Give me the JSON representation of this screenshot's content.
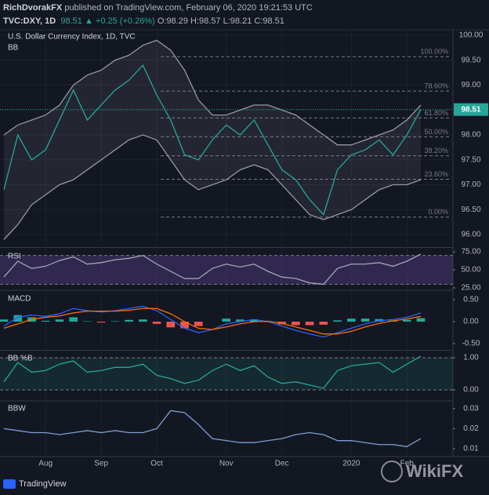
{
  "header": {
    "author": "RichDvorakFX",
    "published": "published on TradingView.com, February 06, 2020 19:21:53 UTC",
    "symbol": "TVC:DXY, 1D",
    "price": "98.51",
    "arrow": "▲",
    "change": "+0.25 (+0.26%)",
    "ohlc": "O:98.29 H:98.57 L:98.21 C:98.51"
  },
  "footer": {
    "brand": "TradingView",
    "watermark": "WikiFX"
  },
  "chart_data": [
    {
      "type": "line",
      "title": "U.S. Dollar Currency Index, 1D, TVC",
      "subtitle": "BB",
      "categories": [
        null,
        null,
        null,
        "Aug",
        null,
        null,
        null,
        "Sep",
        null,
        null,
        null,
        "Oct",
        null,
        null,
        null,
        null,
        "Nov",
        null,
        null,
        null,
        "Dec",
        null,
        null,
        null,
        null,
        "2020",
        null,
        null,
        null,
        "Feb",
        null
      ],
      "ylim": [
        95.78,
        100.11
      ],
      "yticks": [
        {
          "value": 96,
          "label": "96.00"
        },
        {
          "value": 96.5,
          "label": "96.50"
        },
        {
          "value": 97,
          "label": "97.00"
        },
        {
          "value": 97.5,
          "label": "97.50"
        },
        {
          "value": 98,
          "label": "98.00"
        },
        {
          "value": 98.5,
          "label": "98.50"
        },
        {
          "value": 99,
          "label": "99.00"
        },
        {
          "value": 99.5,
          "label": "99.50"
        },
        {
          "value": 100,
          "label": "100.00"
        }
      ],
      "grid": true,
      "fill_between_color": "rgba(178,181,190,0.10)",
      "series": [
        {
          "color": "#9598a1",
          "values": [
            98.0,
            98.2,
            98.3,
            98.4,
            98.6,
            99.0,
            99.2,
            99.3,
            99.5,
            99.6,
            99.8,
            99.9,
            99.7,
            99.3,
            98.7,
            98.4,
            98.4,
            98.5,
            98.6,
            98.6,
            98.5,
            98.4,
            98.2,
            98.0,
            97.8,
            97.8,
            97.9,
            98.0,
            98.1,
            98.3,
            98.6
          ]
        },
        {
          "color": "#9598a1",
          "values": [
            95.9,
            96.2,
            96.6,
            96.8,
            97.0,
            97.1,
            97.3,
            97.5,
            97.7,
            97.9,
            98.0,
            97.9,
            97.5,
            97.1,
            96.9,
            97.0,
            97.1,
            97.3,
            97.4,
            97.3,
            97.0,
            96.7,
            96.4,
            96.3,
            96.4,
            96.5,
            96.7,
            96.9,
            97.0,
            97.0,
            97.1
          ]
        },
        {
          "color": "#26a69a",
          "values": [
            96.9,
            98.0,
            97.5,
            97.7,
            98.3,
            98.9,
            98.3,
            98.6,
            98.9,
            99.1,
            99.4,
            98.8,
            98.3,
            97.6,
            97.5,
            97.9,
            98.2,
            98.0,
            98.3,
            97.8,
            97.3,
            97.1,
            96.7,
            96.4,
            97.3,
            97.6,
            97.7,
            97.9,
            97.6,
            98.0,
            98.51
          ]
        }
      ],
      "levels": [
        {
          "value": 99.57,
          "label": "100.00%"
        },
        {
          "value": 98.88,
          "label": "78.60%"
        },
        {
          "value": 98.34,
          "label": "61.80%"
        },
        {
          "value": 97.96,
          "label": "50.00%"
        },
        {
          "value": 97.58,
          "label": "38.20%"
        },
        {
          "value": 97.11,
          "label": "23.60%"
        },
        {
          "value": 96.35,
          "label": "0.00%"
        }
      ],
      "last": 98.51,
      "last_color": "#26a69a"
    },
    {
      "type": "line",
      "title": "RSI",
      "ylim": [
        23.9,
        78.3
      ],
      "yticks": [
        {
          "value": 25,
          "label": "25.00"
        },
        {
          "value": 50,
          "label": "50.00"
        },
        {
          "value": 75,
          "label": "75.00"
        }
      ],
      "band": [
        30,
        70
      ],
      "band_color": "rgba(126,87,194,0.28)",
      "series": [
        {
          "color": "#a3a6b4",
          "values": [
            40,
            62,
            52,
            55,
            63,
            68,
            58,
            60,
            64,
            66,
            70,
            58,
            48,
            38,
            38,
            52,
            58,
            54,
            58,
            48,
            40,
            38,
            32,
            30,
            52,
            58,
            58,
            60,
            55,
            62,
            72
          ]
        }
      ]
    },
    {
      "type": "line",
      "title": "MACD",
      "ylim": [
        -0.625,
        0.68
      ],
      "yticks": [
        {
          "value": -0.5,
          "label": "-0.50"
        },
        {
          "value": 0,
          "label": "0.00"
        },
        {
          "value": 0.5,
          "label": "0.50"
        }
      ],
      "series": [
        {
          "kind": "histogram",
          "color": "#26a69a",
          "negative_color": "#ef5350",
          "values": [
            0.05,
            0.15,
            0.1,
            0.02,
            0.05,
            0.1,
            0.01,
            -0.02,
            0.01,
            0.04,
            0.05,
            -0.05,
            -0.13,
            -0.15,
            -0.1,
            0.0,
            0.07,
            0.05,
            0.05,
            -0.01,
            -0.06,
            -0.08,
            -0.08,
            -0.07,
            0.03,
            0.07,
            0.07,
            0.06,
            0.03,
            0.04,
            0.08
          ]
        },
        {
          "color": "#2962ff",
          "values": [
            -0.1,
            0.1,
            0.15,
            0.12,
            0.18,
            0.3,
            0.25,
            0.22,
            0.25,
            0.3,
            0.35,
            0.25,
            0.05,
            -0.15,
            -0.25,
            -0.18,
            -0.05,
            0.0,
            0.05,
            0.0,
            -0.1,
            -0.2,
            -0.28,
            -0.35,
            -0.25,
            -0.15,
            -0.05,
            0.02,
            0.05,
            0.1,
            0.2
          ]
        },
        {
          "color": "#ff6d00",
          "values": [
            -0.15,
            -0.05,
            0.05,
            0.1,
            0.13,
            0.2,
            0.24,
            0.24,
            0.24,
            0.26,
            0.3,
            0.3,
            0.18,
            0.0,
            -0.15,
            -0.18,
            -0.12,
            -0.05,
            0.0,
            0.01,
            -0.04,
            -0.12,
            -0.2,
            -0.28,
            -0.28,
            -0.22,
            -0.12,
            -0.04,
            0.02,
            0.06,
            0.12
          ]
        }
      ]
    },
    {
      "type": "line",
      "title": "BB %B",
      "ylim": [
        -0.317,
        1.195
      ],
      "yticks": [
        {
          "value": 0,
          "label": "0.00"
        },
        {
          "value": 1,
          "label": "1.00"
        }
      ],
      "band": [
        0,
        1
      ],
      "band_color": "rgba(38,166,154,0.13)",
      "series": [
        {
          "color": "#26a69a",
          "values": [
            0.25,
            0.85,
            0.55,
            0.6,
            0.8,
            0.9,
            0.55,
            0.6,
            0.7,
            0.7,
            0.8,
            0.45,
            0.35,
            0.2,
            0.3,
            0.6,
            0.8,
            0.6,
            0.75,
            0.4,
            0.2,
            0.25,
            0.15,
            0.05,
            0.6,
            0.75,
            0.8,
            0.85,
            0.55,
            0.8,
            1.05
          ]
        }
      ]
    },
    {
      "type": "line",
      "title": "BBW",
      "ylim": [
        0.0068,
        0.0335
      ],
      "yticks": [
        0.01,
        0.02,
        0.03
      ],
      "series": [
        {
          "color": "#7b9fd4",
          "values": [
            0.02,
            0.019,
            0.018,
            0.018,
            0.017,
            0.018,
            0.019,
            0.018,
            0.019,
            0.018,
            0.018,
            0.02,
            0.029,
            0.028,
            0.022,
            0.015,
            0.014,
            0.013,
            0.013,
            0.014,
            0.015,
            0.017,
            0.018,
            0.017,
            0.014,
            0.014,
            0.013,
            0.012,
            0.012,
            0.011,
            0.015
          ]
        }
      ]
    }
  ]
}
